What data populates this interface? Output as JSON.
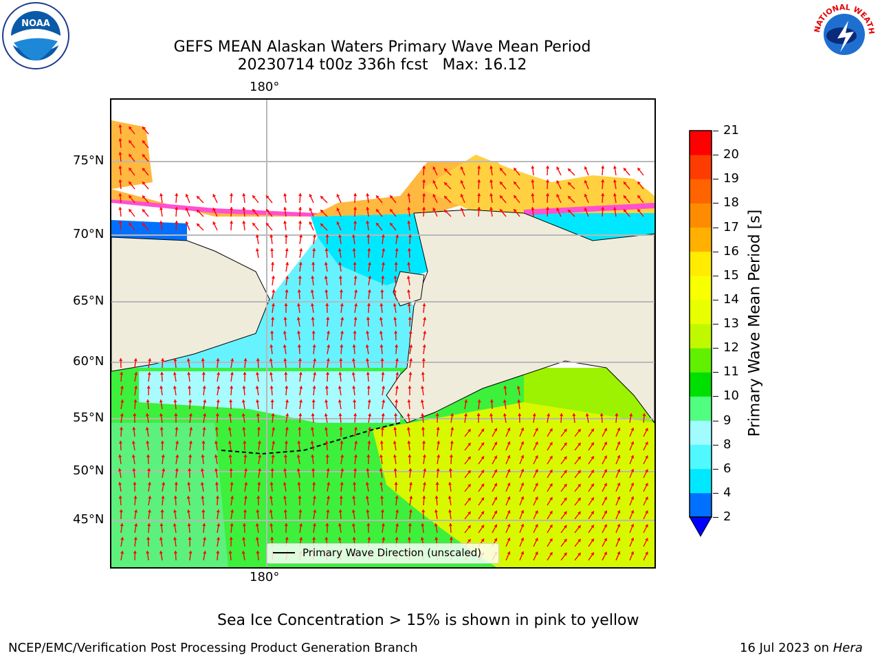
{
  "title": {
    "line1": "GEFS MEAN Alaskan Waters Primary Wave Mean Period",
    "line2": "20230714 t00z 336h fcst   Max: 16.12"
  },
  "logos": {
    "noaa": {
      "text": "NOAA",
      "icon": "noaa-logo"
    },
    "nws": {
      "text": "NATIONAL WEATHER SERVICE",
      "icon": "nws-logo"
    }
  },
  "map": {
    "lon_labels": [
      "180°",
      "180°"
    ],
    "lat_labels": [
      "75°N",
      "70°N",
      "65°N",
      "60°N",
      "55°N",
      "50°N",
      "45°N"
    ],
    "grid": true,
    "legend": {
      "label": "Primary Wave Direction (unscaled)",
      "placement": "bottom-center"
    },
    "arrow_color": "#ff0000",
    "land_color": "#efecdc"
  },
  "colorbar": {
    "label": "Primary Wave Mean Period [s]",
    "ticks": [
      "2",
      "4",
      "6",
      "8",
      "9",
      "10",
      "11",
      "12",
      "13",
      "14",
      "15",
      "16",
      "17",
      "18",
      "19",
      "20",
      "21"
    ],
    "colors": [
      "#0070ff",
      "#00e8ff",
      "#50f8ff",
      "#a0fcff",
      "#50ff80",
      "#00e000",
      "#60f000",
      "#c0f800",
      "#e8ff00",
      "#f8ff00",
      "#ffec00",
      "#ffb000",
      "#ff8c00",
      "#ff6400",
      "#ff3c00",
      "#ff0000"
    ],
    "extend_color": "#0000ff"
  },
  "caption": "Sea Ice Concentration > 15% is shown in pink to yellow",
  "footer": {
    "left": "NCEP/EMC/Verification Post Processing Product Generation Branch",
    "right_prefix": "16 Jul 2023 on ",
    "right_host": "Hera"
  }
}
